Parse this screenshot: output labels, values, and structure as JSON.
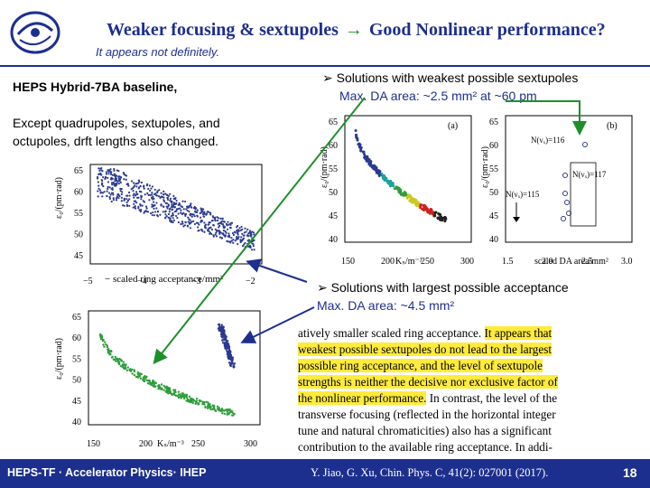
{
  "slide": {
    "title_left": "Weaker focusing & sextupoles",
    "title_arrow": "→",
    "title_right": "Good Nonlinear performance?",
    "subtitle": "It appears not definitely.",
    "baseline": "HEPS Hybrid-7BA baseline,",
    "note": "Except quadrupoles, sextupoles, and octupoles, drft lengths also changed.",
    "bullet1": "Solutions with weakest possible sextupoles",
    "bullet1_sub": "Max. DA area: ~2.5 mm² at ~60 pm",
    "bullet2": "Solutions with largest possible acceptance",
    "bullet2_sub": "Max. DA area: ~4.5 mm²",
    "page_number": "18"
  },
  "paper_excerpt": {
    "lines": [
      {
        "plain": "atively smaller scaled ring acceptance. ",
        "hl": "It appears that"
      },
      {
        "plain": "",
        "hl": "weakest possible sextupoles do not lead to the largest"
      },
      {
        "plain": "",
        "hl": "possible ring acceptance, and the level of sextupole"
      },
      {
        "plain": "",
        "hl": "strengths is neither the decisive nor exclusive factor of"
      },
      {
        "plain": "",
        "hl": "the nonlinear performance.",
        "tail": " In contrast, the level of the"
      },
      {
        "plain": "transverse focusing (reflected in the horizontal integer",
        "hl": ""
      },
      {
        "plain": "tune and natural chromaticities) also has a significant",
        "hl": ""
      },
      {
        "plain": "contribution to the available ring acceptance. In addi-",
        "hl": ""
      }
    ]
  },
  "footer": {
    "left": "HEPS-TF · Accelerator Physics· IHEP",
    "center": "Y. Jiao, G. Xu, Chin. Phys. C, 41(2): 027001 (2017)."
  },
  "figures": {
    "fig_top_left": {
      "ylabel": "ε₀/(pm·rad)",
      "xlabel": "− scaled ring acceptance/mm²",
      "yticks": [
        "65",
        "60",
        "55",
        "50",
        "45"
      ],
      "xticks": [
        "−5",
        "−4",
        "−3",
        "−2"
      ]
    },
    "fig_a": {
      "tag": "(a)",
      "ylabel": "ε₀/(pm·rad)",
      "xlabel": "Kₛ/m⁻³",
      "yticks": [
        "65",
        "60",
        "55",
        "50",
        "45",
        "40"
      ],
      "xticks": [
        "150",
        "200",
        "250",
        "300"
      ]
    },
    "fig_b": {
      "tag": "(b)",
      "ylabel": "ε₀/(pm·rad)",
      "xlabel": "scaled DA area/mm²",
      "yticks": [
        "65",
        "60",
        "55",
        "50",
        "45",
        "40"
      ],
      "xticks": [
        "1.5",
        "2.0",
        "2.5",
        "3.0"
      ],
      "ann_116": "N(νₓ)=116",
      "ann_117": "N(νₓ)=117",
      "ann_115": "N(νₓ)=115"
    },
    "fig_bottom_left": {
      "ylabel": "ε₀/(pm·rad)",
      "xlabel": "Kₛ/m⁻³",
      "yticks": [
        "65",
        "60",
        "55",
        "50",
        "45",
        "40"
      ],
      "xticks": [
        "150",
        "200",
        "250",
        "300"
      ]
    }
  },
  "colors": {
    "title_blue": "#1d2f8e",
    "arrow_green": "#1d8f2a",
    "scatter_blue": "#2b3a8f",
    "scatter_green": "#2e9d3a",
    "highlight": "#ffeb3b"
  }
}
